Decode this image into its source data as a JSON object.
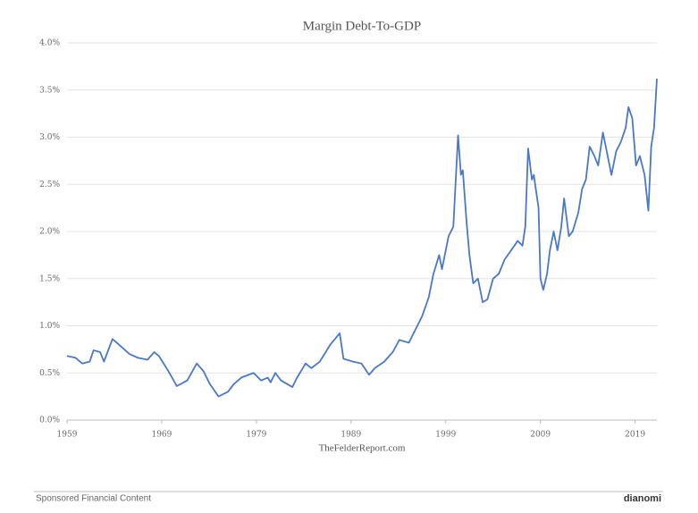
{
  "chart_data": {
    "type": "line",
    "title": "Margin Debt-To-GDP",
    "x": [
      1959.0,
      1959.9,
      1960.6,
      1961.4,
      1961.8,
      1962.5,
      1962.9,
      1963.2,
      1963.8,
      1964.7,
      1965.6,
      1966.5,
      1967.5,
      1968.2,
      1968.7,
      1969.7,
      1970.6,
      1971.7,
      1972.7,
      1973.4,
      1974.1,
      1975.0,
      1976.0,
      1976.6,
      1977.4,
      1978.7,
      1979.5,
      1980.2,
      1980.5,
      1981.0,
      1981.6,
      1982.8,
      1983.3,
      1984.2,
      1984.8,
      1985.7,
      1986.8,
      1987.8,
      1988.2,
      1989.2,
      1990.1,
      1990.9,
      1991.5,
      1992.5,
      1993.4,
      1994.1,
      1995.1,
      1995.5,
      1996.0,
      1996.5,
      1997.2,
      1997.7,
      1998.3,
      1998.6,
      1999.3,
      1999.8,
      2000.3,
      2000.6,
      2000.8,
      2001.2,
      2001.5,
      2001.9,
      2002.4,
      2002.9,
      2003.4,
      2004.0,
      2004.6,
      2005.2,
      2005.9,
      2006.6,
      2007.1,
      2007.4,
      2007.7,
      2008.1,
      2008.3,
      2008.8,
      2009.0,
      2009.3,
      2009.7,
      2010.0,
      2010.4,
      2010.8,
      2011.2,
      2011.5,
      2012.0,
      2012.4,
      2013.0,
      2013.4,
      2013.8,
      2014.2,
      2014.7,
      2015.1,
      2015.6,
      2016.1,
      2016.5,
      2017.0,
      2017.5,
      2018.0,
      2018.3,
      2018.7,
      2019.1,
      2019.5,
      2020.0,
      2020.4,
      2020.7,
      2021.0,
      2021.3
    ],
    "values": [
      0.68,
      0.66,
      0.6,
      0.62,
      0.74,
      0.72,
      0.62,
      0.7,
      0.86,
      0.78,
      0.7,
      0.66,
      0.64,
      0.72,
      0.68,
      0.52,
      0.36,
      0.42,
      0.6,
      0.52,
      0.38,
      0.25,
      0.3,
      0.38,
      0.45,
      0.5,
      0.42,
      0.45,
      0.4,
      0.5,
      0.42,
      0.35,
      0.45,
      0.6,
      0.55,
      0.62,
      0.8,
      0.92,
      0.65,
      0.62,
      0.6,
      0.48,
      0.55,
      0.62,
      0.72,
      0.85,
      0.82,
      0.9,
      1.0,
      1.1,
      1.3,
      1.55,
      1.75,
      1.6,
      1.95,
      2.05,
      3.02,
      2.6,
      2.65,
      2.1,
      1.75,
      1.45,
      1.5,
      1.25,
      1.28,
      1.5,
      1.55,
      1.7,
      1.8,
      1.9,
      1.85,
      2.05,
      2.88,
      2.55,
      2.6,
      2.25,
      1.5,
      1.38,
      1.55,
      1.8,
      2.0,
      1.8,
      2.05,
      2.35,
      1.95,
      2.0,
      2.2,
      2.45,
      2.55,
      2.9,
      2.8,
      2.7,
      3.05,
      2.8,
      2.6,
      2.85,
      2.95,
      3.1,
      3.32,
      3.2,
      2.7,
      2.8,
      2.6,
      2.22,
      2.9,
      3.1,
      3.62
    ],
    "color": "#4a78c9",
    "xlim": [
      1959,
      2021.3
    ],
    "xticks": [
      1959,
      1969,
      1979,
      1989,
      1999,
      2009,
      2019
    ],
    "ylim": [
      0,
      4
    ],
    "yticks": [
      {
        "value": 0,
        "label": "0.0%"
      },
      {
        "value": 0.5,
        "label": "0.5%"
      },
      {
        "value": 1,
        "label": "1.0%"
      },
      {
        "value": 1.5,
        "label": "1.5%"
      },
      {
        "value": 2,
        "label": "2.0%"
      },
      {
        "value": 2.5,
        "label": "2.5%"
      },
      {
        "value": 3,
        "label": "3.0%"
      },
      {
        "value": 3.5,
        "label": "3.5%"
      },
      {
        "value": 4,
        "label": "4.0%"
      }
    ],
    "grid": true,
    "source": "TheFelderReport.com"
  },
  "footer": {
    "sponsored": "Sponsored Financial Content",
    "brand": "dianomi"
  }
}
